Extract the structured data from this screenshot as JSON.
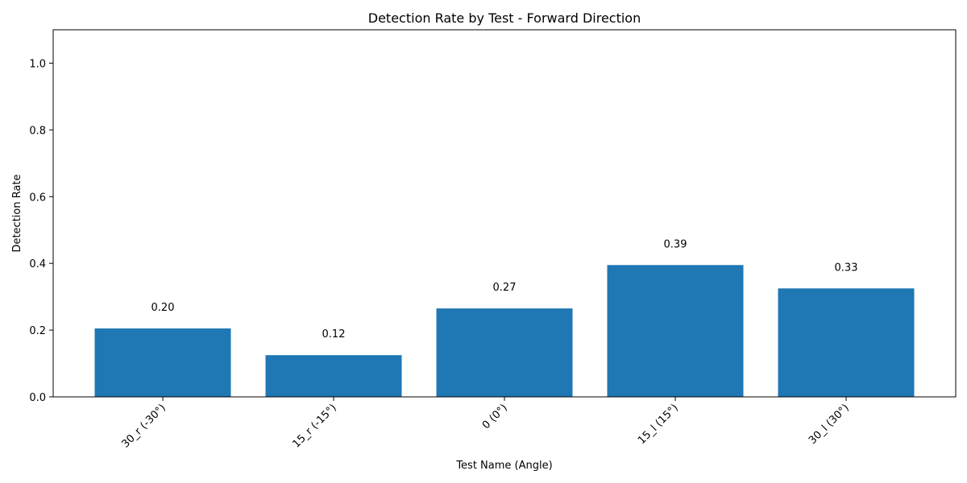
{
  "chart_data": {
    "type": "bar",
    "title": "Detection Rate by Test - Forward Direction",
    "xlabel": "Test Name (Angle)",
    "ylabel": "Detection Rate",
    "categories": [
      "30_r (-30°)",
      "15_r (-15°)",
      "0 (0°)",
      "15_l (15°)",
      "30_l (30°)"
    ],
    "values": [
      0.205,
      0.125,
      0.265,
      0.395,
      0.325
    ],
    "value_labels": [
      "0.20",
      "0.12",
      "0.27",
      "0.39",
      "0.33"
    ],
    "ylim": [
      0,
      1.1
    ],
    "yticks": [
      0.0,
      0.2,
      0.4,
      0.6,
      0.8,
      1.0
    ],
    "ytick_labels": [
      "0.0",
      "0.2",
      "0.4",
      "0.6",
      "0.8",
      "1.0"
    ],
    "bar_color": "#1f77b4",
    "grid": false,
    "legend": "none"
  }
}
